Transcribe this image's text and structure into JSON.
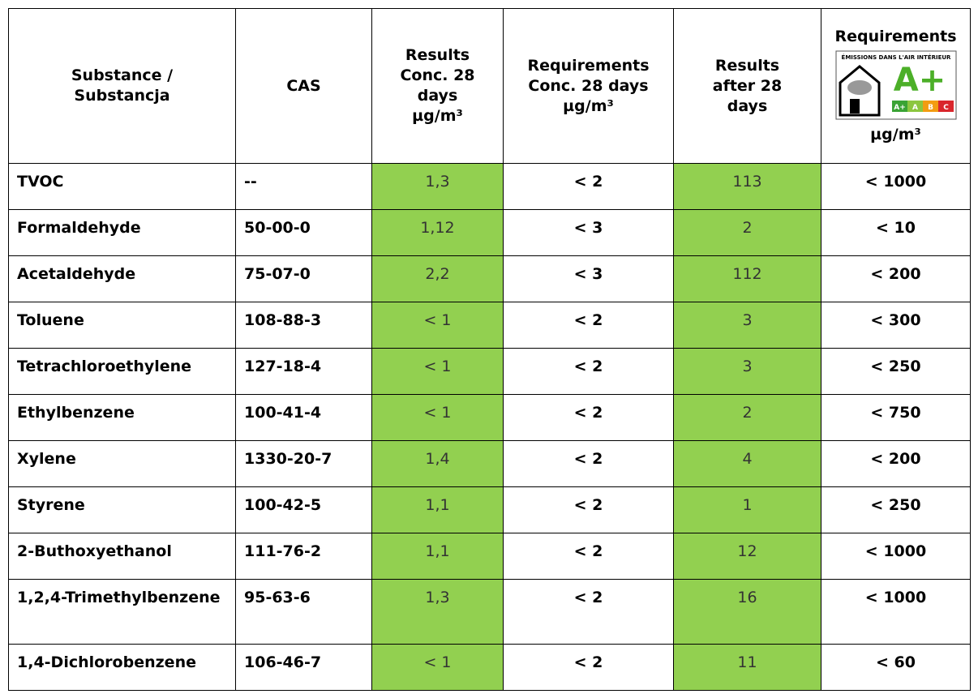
{
  "table": {
    "header": [
      [
        "Substance /",
        "Substancja"
      ],
      [
        "CAS"
      ],
      [
        "Results",
        "Conc. 28",
        "days",
        "µg/m³"
      ],
      [
        "Requirements",
        "Conc. 28 days",
        "µg/m³"
      ],
      [
        "Results",
        "after 28",
        "days"
      ],
      [
        "Requirements",
        "µg/m³"
      ]
    ],
    "logo": {
      "caption": "ÉMISSIONS DANS L'AIR INTÉRIEUR",
      "grade": "A+",
      "classes": [
        "A+",
        "A",
        "B",
        "C"
      ]
    },
    "rows": [
      [
        "TVOC",
        "--",
        "1,3",
        "< 2",
        "113",
        "< 1000"
      ],
      [
        "Formaldehyde",
        "50-00-0",
        "1,12",
        "< 3",
        "2",
        "< 10"
      ],
      [
        "Acetaldehyde",
        "75-07-0",
        "2,2",
        "< 3",
        "112",
        "< 200"
      ],
      [
        "Toluene",
        "108-88-3",
        "< 1",
        "< 2",
        "3",
        "< 300"
      ],
      [
        "Tetrachloroethylene",
        "127-18-4",
        "< 1",
        "< 2",
        "3",
        "< 250"
      ],
      [
        "Ethylbenzene",
        "100-41-4",
        "< 1",
        "< 2",
        "2",
        "< 750"
      ],
      [
        "Xylene",
        "1330-20-7",
        "1,4",
        "< 2",
        "4",
        "< 200"
      ],
      [
        "Styrene",
        "100-42-5",
        "1,1",
        "< 2",
        "1",
        "< 250"
      ],
      [
        "2-Buthoxyethanol",
        "111-76-2",
        "1,1",
        "< 2",
        "12",
        "< 1000"
      ],
      [
        "1,2,4-Trimethylbenzene",
        "95-63-6",
        "1,3",
        "< 2",
        "16",
        "< 1000"
      ],
      [
        "1,4-Dichlorobenzene",
        "106-46-7",
        "< 1",
        "< 2",
        "11",
        "< 60"
      ]
    ]
  }
}
